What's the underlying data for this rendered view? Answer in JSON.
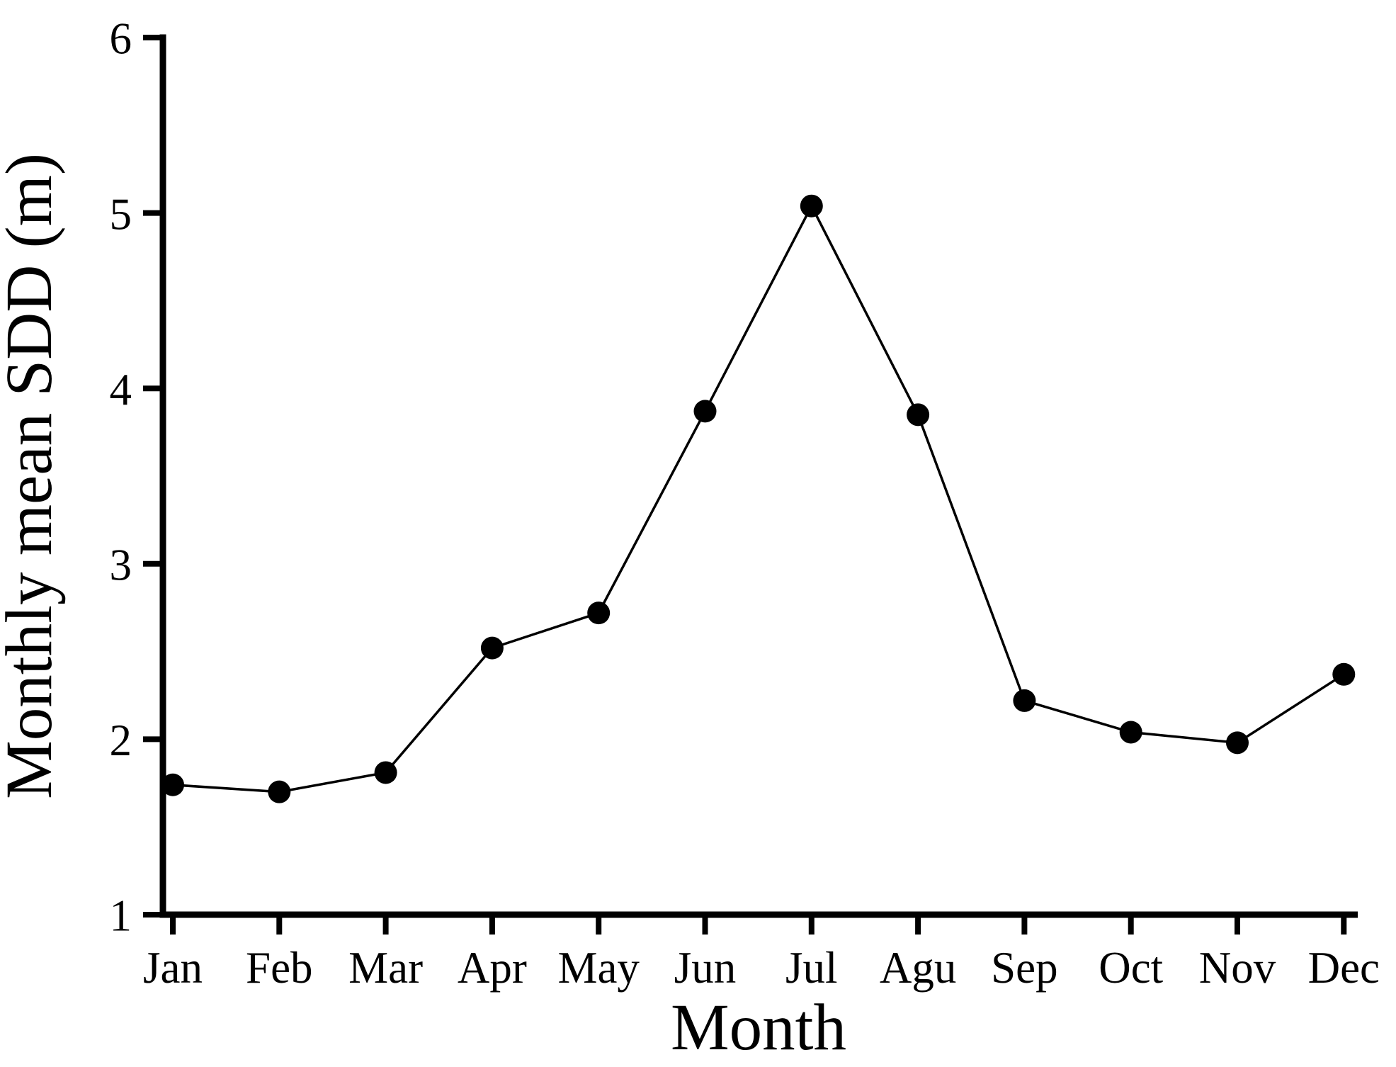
{
  "figure": {
    "background": "#ffffff",
    "ink": "#000000"
  },
  "chart_data": {
    "type": "line",
    "title": "",
    "xlabel": "Month",
    "ylabel": "Monthly mean SDD (m)",
    "categories": [
      "Jan",
      "Feb",
      "Mar",
      "Apr",
      "May",
      "Jun",
      "Jul",
      "Agu",
      "Sep",
      "Oct",
      "Nov",
      "Dec"
    ],
    "series": [
      {
        "name": "Monthly mean SDD",
        "values": [
          1.74,
          1.7,
          1.81,
          2.52,
          2.72,
          3.87,
          5.04,
          3.85,
          2.22,
          2.04,
          1.98,
          2.37
        ]
      }
    ],
    "ylim": [
      1,
      6
    ],
    "yticks": [
      1,
      2,
      3,
      4,
      5,
      6
    ],
    "grid": false,
    "legend": null,
    "marker": "filled-circle",
    "line_color": "#000000",
    "marker_color": "#000000"
  }
}
